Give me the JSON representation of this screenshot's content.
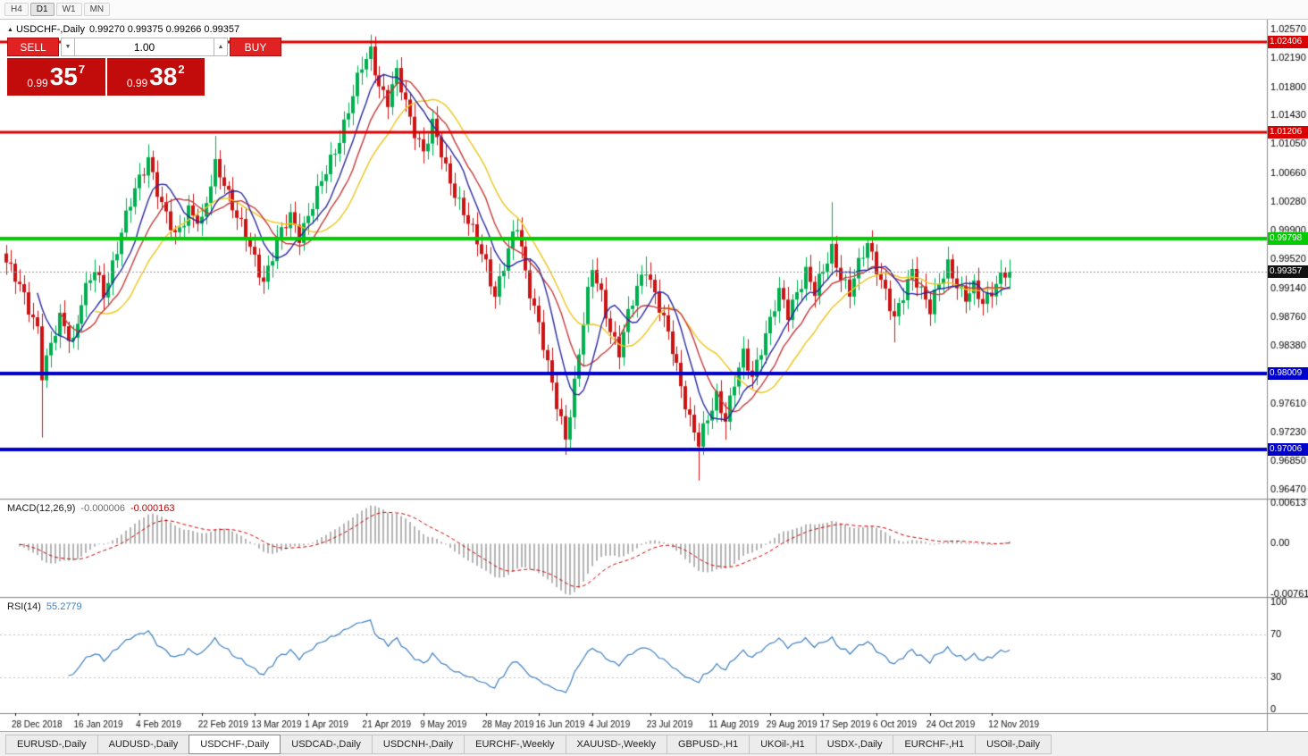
{
  "window": {
    "toolbar": {
      "periods": [
        "H4",
        "D1",
        "W1",
        "MN"
      ],
      "active_index": 1
    }
  },
  "header": {
    "expand_icon": "▲",
    "symbol": "USDCHF-,Daily",
    "ohlc": "0.99270 0.99375 0.99266 0.99357"
  },
  "trade_panel": {
    "sell_label": "SELL",
    "buy_label": "BUY",
    "volume": "1.00",
    "dec_icon": "▼",
    "inc_icon": "▲",
    "sell_price": {
      "prefix": "0.99",
      "big": "35",
      "sup": "7"
    },
    "buy_price": {
      "prefix": "0.99",
      "big": "38",
      "sup": "2"
    }
  },
  "tabs": {
    "active_index": 2,
    "items": [
      "EURUSD-,Daily",
      "AUDUSD-,Daily",
      "USDCHF-,Daily",
      "USDCAD-,Daily",
      "USDCNH-,Daily",
      "EURCHF-,Weekly",
      "XAUUSD-,Weekly",
      "GBPUSD-,H1",
      "UKOil-,H1",
      "USDX-,Daily",
      "EURCHF-,H1",
      "USOil-,Daily"
    ]
  },
  "chart_data": {
    "type": "candlestick",
    "symbol": "USDCHF-,Daily",
    "style": {
      "bull": "#00b050",
      "bear": "#cc1414"
    },
    "price_axis": {
      "min": 0.9635,
      "max": 1.027,
      "ticks": [
        "1.02570",
        "1.02190",
        "1.01800",
        "1.01430",
        "1.01050",
        "1.00660",
        "1.00280",
        "0.99900",
        "0.99520",
        "0.99140",
        "0.98760",
        "0.98380",
        "0.98000",
        "0.97610",
        "0.97230",
        "0.96850",
        "0.96470"
      ]
    },
    "hlines": [
      {
        "price": 1.02406,
        "label": "1.02406",
        "color": "#dd0000",
        "width": 3
      },
      {
        "price": 1.01206,
        "label": "1.01206",
        "color": "#dd0000",
        "width": 3
      },
      {
        "price": 0.99798,
        "label": "0.99798",
        "color": "#00cc00",
        "width": 4
      },
      {
        "price": 0.98009,
        "label": "0.98009",
        "color": "#0000cc",
        "width": 4
      },
      {
        "price": 0.97006,
        "label": "0.97006",
        "color": "#0000cc",
        "width": 4
      }
    ],
    "current": {
      "price": 0.99357,
      "label": "0.99357",
      "badge": "#111111"
    },
    "candles": {
      "count": 227,
      "first_open": 0.996,
      "noise": [
        [
          0.0008,
          2.17
        ],
        [
          0.0005,
          0.73
        ]
      ],
      "pivots": [
        [
          0,
          0.9948
        ],
        [
          4,
          0.9902
        ],
        [
          7,
          0.9864
        ],
        [
          8,
          0.9802
        ],
        [
          10,
          0.9835
        ],
        [
          12,
          0.9872
        ],
        [
          15,
          0.9846
        ],
        [
          17,
          0.9898
        ],
        [
          20,
          0.9935
        ],
        [
          22,
          0.9908
        ],
        [
          26,
          0.9988
        ],
        [
          29,
          1.0042
        ],
        [
          32,
          1.009
        ],
        [
          35,
          1.0022
        ],
        [
          38,
          0.998
        ],
        [
          41,
          1.0022
        ],
        [
          44,
          0.9998
        ],
        [
          47,
          1.0076
        ],
        [
          49,
          1.0058
        ],
        [
          52,
          1.0008
        ],
        [
          56,
          0.9952
        ],
        [
          58,
          0.9926
        ],
        [
          61,
          0.9975
        ],
        [
          64,
          1.0008
        ],
        [
          66,
          0.9986
        ],
        [
          68,
          1.0012
        ],
        [
          71,
          1.0052
        ],
        [
          74,
          1.0098
        ],
        [
          77,
          1.0152
        ],
        [
          80,
          1.0205
        ],
        [
          82,
          1.0228
        ],
        [
          84,
          1.0186
        ],
        [
          86,
          1.0162
        ],
        [
          88,
          1.0196
        ],
        [
          91,
          1.014
        ],
        [
          94,
          1.0096
        ],
        [
          96,
          1.0128
        ],
        [
          99,
          1.0072
        ],
        [
          102,
          1.003
        ],
        [
          105,
          0.9986
        ],
        [
          108,
          0.9946
        ],
        [
          110,
          0.9908
        ],
        [
          113,
          0.9962
        ],
        [
          115,
          0.9995
        ],
        [
          117,
          0.9936
        ],
        [
          120,
          0.9868
        ],
        [
          122,
          0.9808
        ],
        [
          124,
          0.9758
        ],
        [
          126,
          0.9718
        ],
        [
          128,
          0.979
        ],
        [
          130,
          0.9868
        ],
        [
          132,
          0.9938
        ],
        [
          134,
          0.9906
        ],
        [
          136,
          0.9862
        ],
        [
          138,
          0.9828
        ],
        [
          140,
          0.9875
        ],
        [
          142,
          0.9915
        ],
        [
          144,
          0.9945
        ],
        [
          146,
          0.9906
        ],
        [
          148,
          0.9868
        ],
        [
          150,
          0.9832
        ],
        [
          152,
          0.9788
        ],
        [
          154,
          0.9742
        ],
        [
          156,
          0.9706
        ],
        [
          158,
          0.9738
        ],
        [
          160,
          0.9772
        ],
        [
          162,
          0.9744
        ],
        [
          164,
          0.9788
        ],
        [
          166,
          0.9822
        ],
        [
          168,
          0.9796
        ],
        [
          170,
          0.9838
        ],
        [
          172,
          0.9872
        ],
        [
          174,
          0.9905
        ],
        [
          176,
          0.9878
        ],
        [
          178,
          0.9912
        ],
        [
          180,
          0.9938
        ],
        [
          182,
          0.9906
        ],
        [
          184,
          0.9935
        ],
        [
          186,
          0.9968
        ],
        [
          188,
          0.9932
        ],
        [
          190,
          0.9906
        ],
        [
          192,
          0.9942
        ],
        [
          194,
          0.9975
        ],
        [
          196,
          0.9945
        ],
        [
          198,
          0.9908
        ],
        [
          200,
          0.9868
        ],
        [
          202,
          0.9905
        ],
        [
          204,
          0.9942
        ],
        [
          206,
          0.9912
        ],
        [
          208,
          0.9882
        ],
        [
          210,
          0.9918
        ],
        [
          212,
          0.9948
        ],
        [
          214,
          0.9922
        ],
        [
          216,
          0.9898
        ],
        [
          218,
          0.9912
        ],
        [
          220,
          0.9896
        ],
        [
          222,
          0.9915
        ],
        [
          224,
          0.9928
        ],
        [
          226,
          0.99357
        ]
      ],
      "spikes": [
        {
          "i": 8,
          "low": 0.9716
        },
        {
          "i": 32,
          "high": 1.0098
        },
        {
          "i": 47,
          "high": 1.0116
        },
        {
          "i": 82,
          "high": 1.0238
        },
        {
          "i": 88,
          "high": 1.0212
        },
        {
          "i": 96,
          "high": 1.014
        },
        {
          "i": 115,
          "high": 1.0006
        },
        {
          "i": 126,
          "low": 0.9693
        },
        {
          "i": 132,
          "high": 0.9952
        },
        {
          "i": 144,
          "high": 0.9956
        },
        {
          "i": 156,
          "low": 0.9659
        },
        {
          "i": 162,
          "low": 0.9713
        },
        {
          "i": 186,
          "high": 1.0028
        },
        {
          "i": 200,
          "low": 0.9842
        }
      ]
    },
    "ma": [
      {
        "period": 21,
        "color": "#eec61e"
      },
      {
        "period": 13,
        "color": "#c43b3b"
      },
      {
        "period": 8,
        "color": "#2a2aa0"
      }
    ],
    "macd": {
      "name": "MACD(12,26,9)",
      "value_main": "-0.000006",
      "value_signal": "-0.000163",
      "fast": 12,
      "slow": 26,
      "signal": 9,
      "range": [
        -0.008,
        0.0065
      ],
      "hist_color": "#b4b4b4",
      "signal_color": "#cc0000",
      "axis": [
        [
          "0.00613",
          0.00613
        ],
        [
          "0.00",
          0
        ],
        [
          "-0.00761",
          -0.00761
        ]
      ]
    },
    "rsi": {
      "name": "RSI(14)",
      "value": "55.2779",
      "period": 14,
      "color": "#4080c0",
      "levels": [
        70,
        30
      ],
      "axis": [
        [
          "100",
          100
        ],
        [
          "70",
          70
        ],
        [
          "30",
          30
        ],
        [
          "0",
          0
        ]
      ]
    },
    "dates": [
      [
        "28 Dec 2018",
        2
      ],
      [
        "16 Jan 2019",
        16
      ],
      [
        "4 Feb 2019",
        30
      ],
      [
        "22 Feb 2019",
        44
      ],
      [
        "13 Mar 2019",
        56
      ],
      [
        "1 Apr 2019",
        68
      ],
      [
        "21 Apr 2019",
        81
      ],
      [
        "9 May 2019",
        94
      ],
      [
        "28 May 2019",
        108
      ],
      [
        "16 Jun 2019",
        120
      ],
      [
        "4 Jul 2019",
        132
      ],
      [
        "23 Jul 2019",
        145
      ],
      [
        "11 Aug 2019",
        159
      ],
      [
        "29 Aug 2019",
        172
      ],
      [
        "17 Sep 2019",
        184
      ],
      [
        "6 Oct 2019",
        196
      ],
      [
        "24 Oct 2019",
        208
      ],
      [
        "12 Nov 2019",
        222
      ]
    ]
  }
}
